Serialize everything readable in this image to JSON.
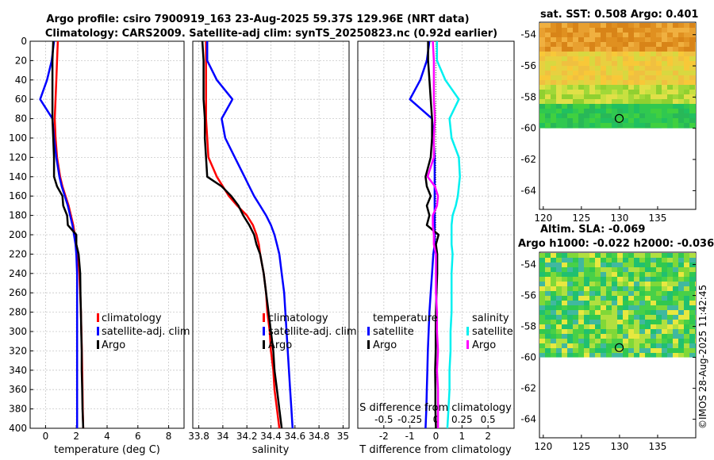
{
  "title_line1": "Argo profile: csiro 7900919_163 23-Aug-2025 59.37S 129.96E (NRT data)",
  "title_line2": "Climatology: CARS2009. Satellite-adj clim: synTS_20250823.nc (0.92d earlier)",
  "copyright": "©IMOS 28-Aug-2025 11:42:45",
  "colors": {
    "clim": "#ff0000",
    "sat": "#0000ff",
    "argo": "#000000",
    "sat_s": "#00f0f0",
    "argo_s": "#ff00ff"
  },
  "depth_ticks": [
    "0",
    "20",
    "40",
    "60",
    "80",
    "100",
    "120",
    "140",
    "160",
    "180",
    "200",
    "220",
    "240",
    "260",
    "280",
    "300",
    "320",
    "340",
    "360",
    "380",
    "400"
  ],
  "temp_panel": {
    "xlabel": "temperature (deg C)",
    "xticks": [
      "0",
      "2",
      "4",
      "6",
      "8"
    ],
    "legend": [
      "climatology",
      "satellite-adj. clim",
      "Argo"
    ]
  },
  "sal_panel": {
    "xlabel": "salinity",
    "xticks": [
      "33.8",
      "34",
      "34.2",
      "34.4",
      "34.6",
      "34.8",
      "35"
    ],
    "legend": [
      "climatology",
      "satellite-adj. clim",
      "Argo"
    ]
  },
  "diff_panel": {
    "xlabel": "T difference from climatology",
    "xticks": [
      "-2",
      "-1",
      "0",
      "1",
      "2"
    ],
    "s_label": "S difference from climatology",
    "s_ticks": [
      "-0.5",
      "-0.25",
      "0",
      "0.25",
      "0.5"
    ],
    "legend_t_title": "temperature",
    "legend_t": [
      "satellite",
      "Argo"
    ],
    "legend_s_title": "salinity",
    "legend_s": [
      "satellite",
      "Argo"
    ]
  },
  "sst_map": {
    "title": "sat. SST: 0.508 Argo: 0.401",
    "xticks": [
      "120",
      "125",
      "130",
      "135"
    ],
    "yticks": [
      "-54",
      "-56",
      "-58",
      "-60",
      "-62",
      "-64"
    ]
  },
  "sla_map": {
    "title1": "Altim. SLA: -0.069",
    "title2": "Argo h1000: -0.022 h2000: -0.036",
    "xticks": [
      "120",
      "125",
      "130",
      "135"
    ],
    "yticks": [
      "-54",
      "-56",
      "-58",
      "-60",
      "-62",
      "-64"
    ]
  },
  "chart_data": {
    "type": "line",
    "depth": [
      0,
      20,
      40,
      60,
      80,
      100,
      120,
      140,
      150,
      160,
      170,
      180,
      190,
      200,
      210,
      220,
      240,
      260,
      280,
      300,
      320,
      340,
      360,
      380,
      400
    ],
    "temperature": {
      "xlim": [
        -1,
        9
      ],
      "ylim": [
        0,
        400
      ],
      "climatology": [
        0.8,
        0.75,
        0.7,
        0.65,
        0.6,
        0.65,
        0.75,
        0.95,
        1.1,
        1.3,
        1.5,
        1.65,
        1.8,
        1.9,
        2.0,
        2.1,
        2.2,
        2.25,
        2.3,
        2.33,
        2.36,
        2.38,
        2.4,
        2.42,
        2.45
      ],
      "satellite": [
        0.55,
        0.4,
        0.1,
        -0.35,
        0.45,
        0.55,
        0.7,
        0.9,
        1.05,
        1.25,
        1.45,
        1.6,
        1.75,
        1.85,
        1.95,
        2.0,
        2.05,
        2.05,
        2.05,
        2.05,
        2.05,
        2.05,
        2.05,
        2.05,
        2.05
      ],
      "argo": [
        0.5,
        0.45,
        0.45,
        0.45,
        0.45,
        0.5,
        0.55,
        0.55,
        0.75,
        1.1,
        1.15,
        1.4,
        1.45,
        2.0,
        2.0,
        2.15,
        2.25,
        2.27,
        2.3,
        2.32,
        2.35,
        2.35,
        2.38,
        2.4,
        2.45
      ]
    },
    "salinity": {
      "xlim": [
        33.75,
        35.05
      ],
      "ylim": [
        0,
        400
      ],
      "climatology": [
        33.86,
        33.86,
        33.86,
        33.86,
        33.86,
        33.87,
        33.88,
        33.95,
        34.0,
        34.05,
        34.12,
        34.2,
        34.25,
        34.28,
        34.3,
        34.31,
        34.34,
        34.36,
        34.37,
        34.39,
        34.4,
        34.42,
        34.43,
        34.45,
        34.47
      ],
      "satellite": [
        33.87,
        33.87,
        33.95,
        34.08,
        33.99,
        34.02,
        34.1,
        34.18,
        34.22,
        34.26,
        34.31,
        34.36,
        34.4,
        34.43,
        34.45,
        34.47,
        34.49,
        34.51,
        34.52,
        34.53,
        34.54,
        34.55,
        34.56,
        34.57,
        34.58
      ],
      "argo": [
        33.83,
        33.84,
        33.84,
        33.84,
        33.85,
        33.85,
        33.86,
        33.87,
        33.99,
        34.07,
        34.13,
        34.17,
        34.22,
        34.26,
        34.28,
        34.31,
        34.34,
        34.36,
        34.38,
        34.4,
        34.42,
        34.43,
        34.45,
        34.47,
        34.49
      ]
    },
    "t_difference": {
      "xlim": [
        -3,
        3
      ],
      "satellite": [
        -0.25,
        -0.35,
        -0.6,
        -1.0,
        -0.15,
        -0.1,
        -0.05,
        -0.05,
        -0.05,
        -0.05,
        -0.05,
        -0.05,
        -0.05,
        -0.05,
        -0.05,
        -0.1,
        -0.15,
        -0.2,
        -0.25,
        -0.28,
        -0.31,
        -0.33,
        -0.35,
        -0.37,
        -0.4
      ],
      "argo": [
        -0.3,
        -0.3,
        -0.25,
        -0.2,
        -0.15,
        -0.15,
        -0.2,
        -0.4,
        -0.35,
        -0.2,
        -0.35,
        -0.25,
        -0.35,
        0.1,
        0.0,
        0.05,
        0.05,
        0.02,
        0.0,
        -0.01,
        -0.01,
        -0.03,
        -0.02,
        -0.02,
        0.0
      ]
    },
    "s_difference": {
      "xlim": [
        -0.75,
        0.75
      ],
      "satellite": [
        0.01,
        0.01,
        0.09,
        0.22,
        0.13,
        0.15,
        0.22,
        0.23,
        0.22,
        0.21,
        0.19,
        0.16,
        0.15,
        0.15,
        0.15,
        0.16,
        0.15,
        0.15,
        0.15,
        0.14,
        0.14,
        0.13,
        0.13,
        0.12,
        0.11
      ],
      "argo": [
        -0.03,
        -0.02,
        -0.02,
        -0.02,
        -0.01,
        -0.02,
        -0.02,
        -0.08,
        -0.01,
        0.02,
        0.01,
        -0.03,
        -0.03,
        -0.02,
        -0.02,
        0.0,
        0.0,
        0.0,
        0.01,
        0.01,
        0.02,
        0.01,
        0.02,
        0.02,
        0.02
      ]
    },
    "argo_position": {
      "lon": 129.96,
      "lat": -59.37
    }
  }
}
